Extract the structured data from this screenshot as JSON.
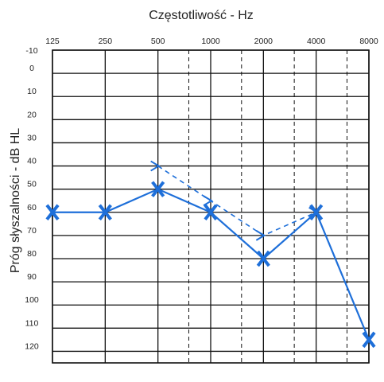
{
  "chart_data": {
    "type": "line",
    "title": "Częstotliwość - Hz",
    "ylabel": "Próg słyszalności - dB HL",
    "x_ticks": [
      "125",
      "250",
      "500",
      "1000",
      "2000",
      "4000",
      "8000"
    ],
    "y_ticks": [
      "-10",
      "0",
      "10",
      "20",
      "30",
      "40",
      "50",
      "60",
      "70",
      "80",
      "90",
      "100",
      "110",
      "120"
    ],
    "ylim": [
      -10,
      125
    ],
    "y_inverted": true,
    "intermediate_dashed_frequencies": [
      750,
      1500,
      3000,
      6000
    ],
    "series": [
      {
        "marker": "X",
        "line": "solid",
        "x": [
          125,
          250,
          500,
          1000,
          2000,
          4000,
          8000
        ],
        "y": [
          60,
          60,
          50,
          60,
          80,
          60,
          115
        ]
      },
      {
        "marker": ">",
        "line": "dashed",
        "x": [
          500,
          1000,
          2000,
          4000
        ],
        "y": [
          40,
          55,
          70,
          60
        ]
      }
    ],
    "grid": true,
    "color": "#1e6fd9"
  }
}
